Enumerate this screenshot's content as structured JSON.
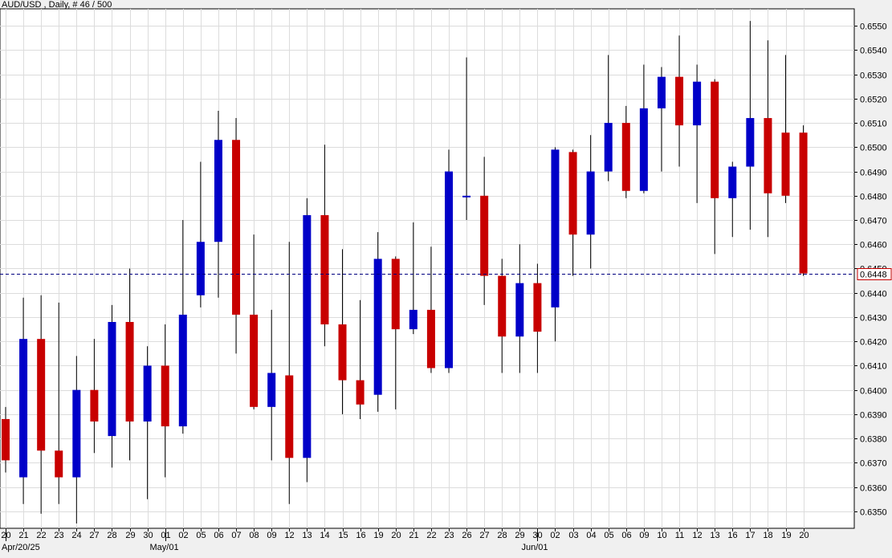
{
  "header": {
    "title": "AUD/USD , Daily, # 46 / 500"
  },
  "colors": {
    "bull": "#0000c8",
    "bear": "#c80000",
    "wick": "#000000",
    "grid": "#dcdcdc",
    "price_line": "#000080",
    "background": "#ffffff",
    "page": "#f0f0f0"
  },
  "chart_data": {
    "type": "candlestick",
    "symbol": "AUD/USD",
    "timeframe": "Daily",
    "counter": "# 46 / 500",
    "ylim": [
      0.6343,
      0.6557
    ],
    "y_ticks": [
      "0.6350",
      "0.6360",
      "0.6370",
      "0.6380",
      "0.6390",
      "0.6400",
      "0.6410",
      "0.6420",
      "0.6430",
      "0.6440",
      "0.6450",
      "0.6460",
      "0.6470",
      "0.6480",
      "0.6490",
      "0.6500",
      "0.6510",
      "0.6520",
      "0.6530",
      "0.6540",
      "0.6550"
    ],
    "current_price": "0.6448",
    "x_labels": [
      "20",
      "21",
      "22",
      "23",
      "24",
      "27",
      "28",
      "29",
      "30",
      "01",
      "02",
      "05",
      "06",
      "07",
      "08",
      "09",
      "12",
      "13",
      "14",
      "15",
      "16",
      "19",
      "20",
      "21",
      "22",
      "23",
      "26",
      "27",
      "28",
      "29",
      "30",
      "02",
      "03",
      "04",
      "05",
      "06",
      "09",
      "10",
      "11",
      "12",
      "13",
      "16",
      "17",
      "18",
      "19",
      "20"
    ],
    "month_labels": [
      {
        "label": "Apr/20/25",
        "index": 0
      },
      {
        "label": "May/01",
        "index": 9
      },
      {
        "label": "Jun/01",
        "index": 30
      }
    ],
    "candles": [
      {
        "o": 0.6388,
        "h": 0.6393,
        "l": 0.6366,
        "c": 0.6371
      },
      {
        "o": 0.6364,
        "h": 0.6438,
        "l": 0.6353,
        "c": 0.6421
      },
      {
        "o": 0.6421,
        "h": 0.6439,
        "l": 0.6349,
        "c": 0.6375
      },
      {
        "o": 0.6375,
        "h": 0.6436,
        "l": 0.6353,
        "c": 0.6364
      },
      {
        "o": 0.6364,
        "h": 0.6414,
        "l": 0.6345,
        "c": 0.64
      },
      {
        "o": 0.64,
        "h": 0.6421,
        "l": 0.6374,
        "c": 0.6387
      },
      {
        "o": 0.6381,
        "h": 0.6435,
        "l": 0.6368,
        "c": 0.6428
      },
      {
        "o": 0.6428,
        "h": 0.645,
        "l": 0.6371,
        "c": 0.6387
      },
      {
        "o": 0.6387,
        "h": 0.6418,
        "l": 0.6355,
        "c": 0.641
      },
      {
        "o": 0.641,
        "h": 0.6427,
        "l": 0.6364,
        "c": 0.6385
      },
      {
        "o": 0.6385,
        "h": 0.647,
        "l": 0.6382,
        "c": 0.6431
      },
      {
        "o": 0.6439,
        "h": 0.6494,
        "l": 0.6434,
        "c": 0.6461
      },
      {
        "o": 0.6461,
        "h": 0.6515,
        "l": 0.6438,
        "c": 0.6503
      },
      {
        "o": 0.6503,
        "h": 0.6512,
        "l": 0.6415,
        "c": 0.6431
      },
      {
        "o": 0.6431,
        "h": 0.6464,
        "l": 0.6392,
        "c": 0.6393
      },
      {
        "o": 0.6393,
        "h": 0.6433,
        "l": 0.6371,
        "c": 0.6407
      },
      {
        "o": 0.6406,
        "h": 0.6461,
        "l": 0.6353,
        "c": 0.6372
      },
      {
        "o": 0.6372,
        "h": 0.6479,
        "l": 0.6362,
        "c": 0.6472
      },
      {
        "o": 0.6472,
        "h": 0.6501,
        "l": 0.6418,
        "c": 0.6427
      },
      {
        "o": 0.6427,
        "h": 0.6458,
        "l": 0.639,
        "c": 0.6404
      },
      {
        "o": 0.6404,
        "h": 0.6437,
        "l": 0.6388,
        "c": 0.6394
      },
      {
        "o": 0.6398,
        "h": 0.6465,
        "l": 0.6391,
        "c": 0.6454
      },
      {
        "o": 0.6454,
        "h": 0.6455,
        "l": 0.6392,
        "c": 0.6425
      },
      {
        "o": 0.6425,
        "h": 0.6469,
        "l": 0.6423,
        "c": 0.6433
      },
      {
        "o": 0.6433,
        "h": 0.6459,
        "l": 0.6407,
        "c": 0.6409
      },
      {
        "o": 0.6409,
        "h": 0.6499,
        "l": 0.6407,
        "c": 0.649
      },
      {
        "o": 0.648,
        "h": 0.6537,
        "l": 0.647,
        "c": 0.648
      },
      {
        "o": 0.648,
        "h": 0.6496,
        "l": 0.6435,
        "c": 0.6447
      },
      {
        "o": 0.6447,
        "h": 0.6454,
        "l": 0.6407,
        "c": 0.6422
      },
      {
        "o": 0.6422,
        "h": 0.646,
        "l": 0.6407,
        "c": 0.6444
      },
      {
        "o": 0.6444,
        "h": 0.6452,
        "l": 0.6407,
        "c": 0.6424
      },
      {
        "o": 0.6434,
        "h": 0.65,
        "l": 0.642,
        "c": 0.6499
      },
      {
        "o": 0.6498,
        "h": 0.6499,
        "l": 0.6447,
        "c": 0.6464
      },
      {
        "o": 0.6464,
        "h": 0.6505,
        "l": 0.645,
        "c": 0.649
      },
      {
        "o": 0.649,
        "h": 0.6538,
        "l": 0.6486,
        "c": 0.651
      },
      {
        "o": 0.651,
        "h": 0.6517,
        "l": 0.6479,
        "c": 0.6482
      },
      {
        "o": 0.6482,
        "h": 0.6534,
        "l": 0.6481,
        "c": 0.6516
      },
      {
        "o": 0.6516,
        "h": 0.6533,
        "l": 0.649,
        "c": 0.6529
      },
      {
        "o": 0.6529,
        "h": 0.6546,
        "l": 0.6492,
        "c": 0.6509
      },
      {
        "o": 0.6509,
        "h": 0.6534,
        "l": 0.6477,
        "c": 0.6527
      },
      {
        "o": 0.6527,
        "h": 0.6528,
        "l": 0.6456,
        "c": 0.6479
      },
      {
        "o": 0.6479,
        "h": 0.6494,
        "l": 0.6463,
        "c": 0.6492
      },
      {
        "o": 0.6492,
        "h": 0.6552,
        "l": 0.6466,
        "c": 0.6512
      },
      {
        "o": 0.6512,
        "h": 0.6544,
        "l": 0.6463,
        "c": 0.6481
      },
      {
        "o": 0.6506,
        "h": 0.6538,
        "l": 0.6477,
        "c": 0.648
      },
      {
        "o": 0.6506,
        "h": 0.6509,
        "l": 0.6447,
        "c": 0.6448
      }
    ]
  }
}
